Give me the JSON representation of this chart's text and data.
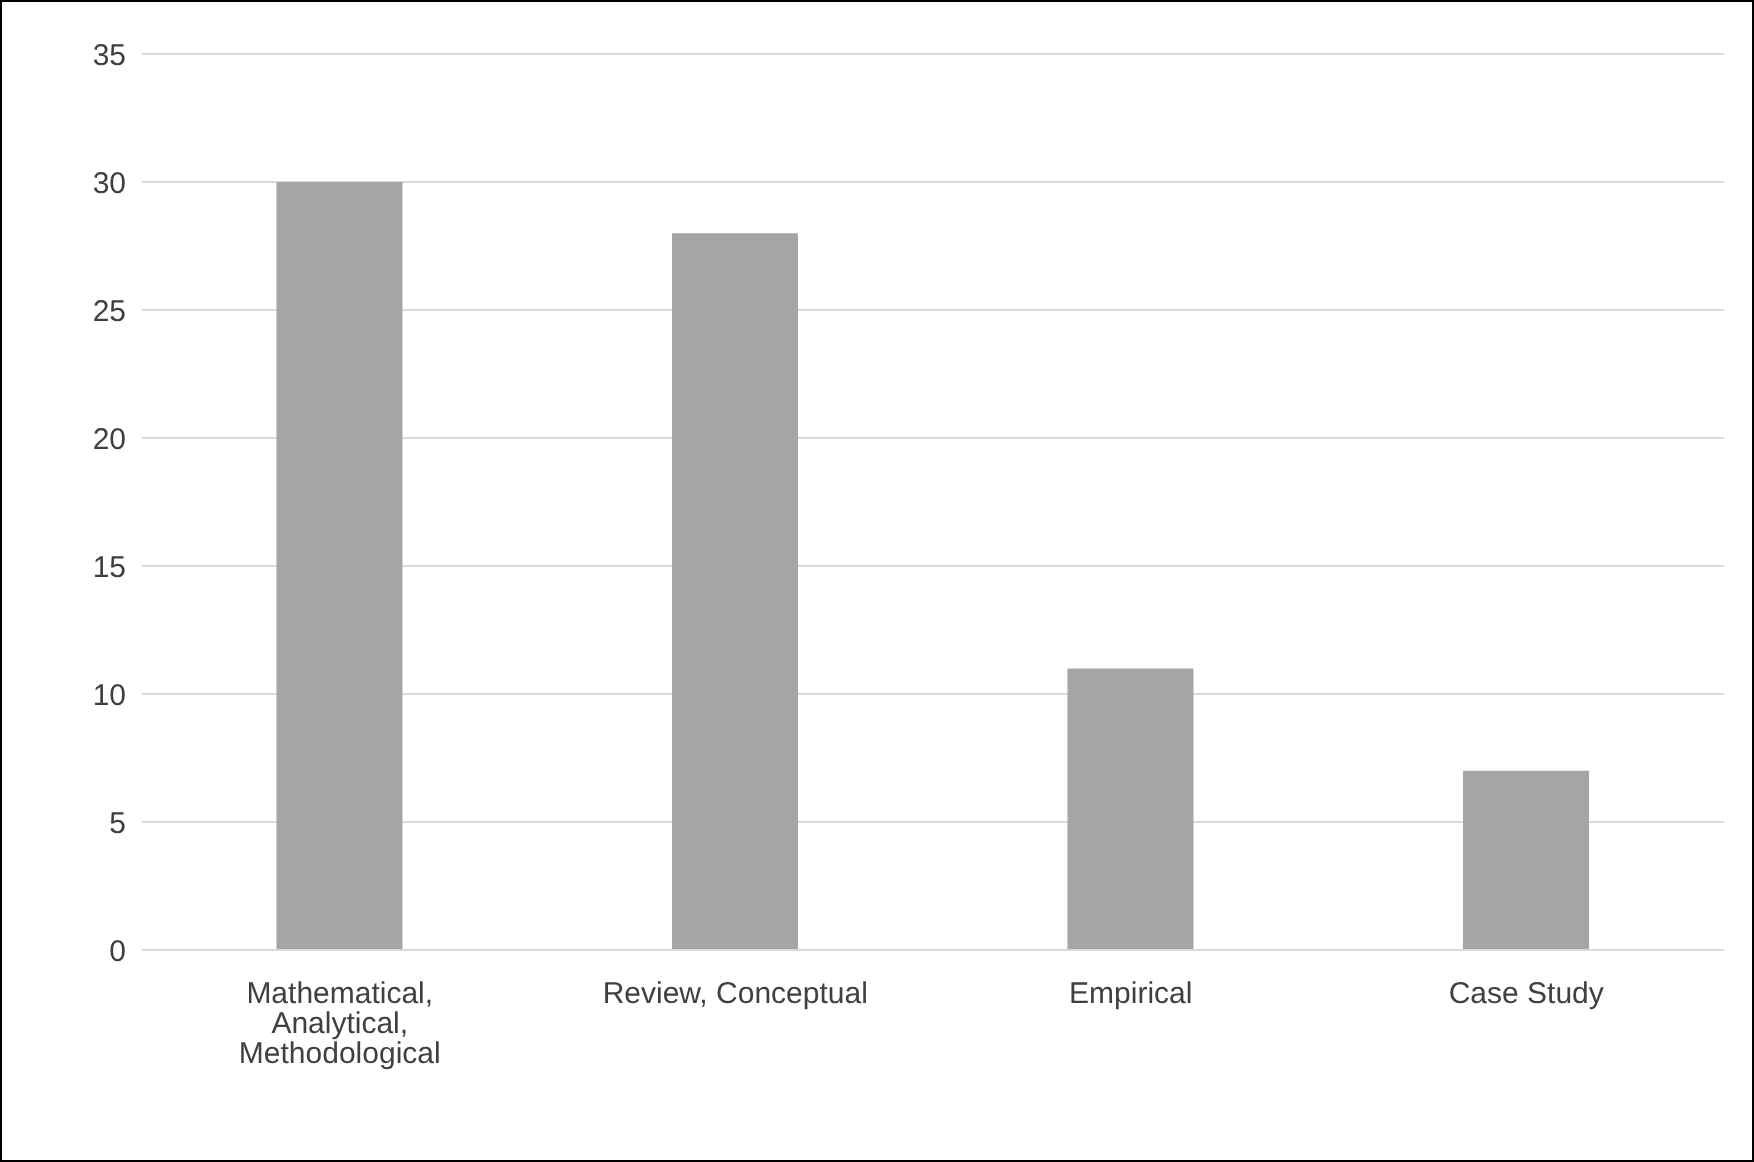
{
  "chart_data": {
    "type": "bar",
    "categories": [
      "Mathematical, Analytical, Methodological",
      "Review, Conceptual",
      "Empirical",
      "Case Study"
    ],
    "values": [
      30,
      28,
      11,
      7
    ],
    "color": "#a5a5a5",
    "ylim": [
      0,
      35
    ],
    "yticks": [
      0,
      5,
      10,
      15,
      20,
      25,
      30,
      35
    ],
    "grid": "y"
  }
}
